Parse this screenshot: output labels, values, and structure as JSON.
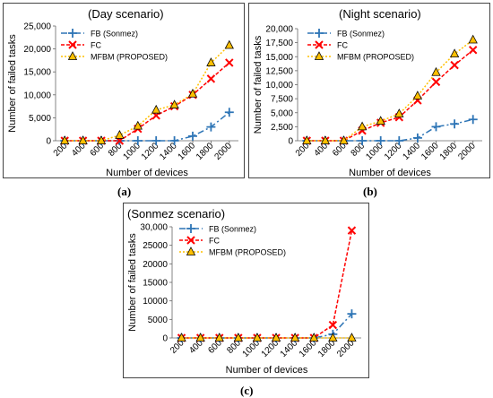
{
  "chart_data": [
    {
      "type": "line",
      "panel": "a",
      "title": "(Day scenario)",
      "xlabel": "Number of devices",
      "ylabel": "Number of failed tasks",
      "categories": [
        "200",
        "400",
        "600",
        "800",
        "1000",
        "1200",
        "1400",
        "1600",
        "1800",
        "2000"
      ],
      "yticks": [
        "0",
        "5,000",
        "10,000",
        "15,000",
        "20,000",
        "25,000"
      ],
      "ylim": [
        0,
        25000
      ],
      "legend_position": "top-left",
      "series": [
        {
          "name": "FB (Sonmez)",
          "color": "#2e75b6",
          "marker": "plus",
          "dash": "dashdot",
          "values": [
            0,
            0,
            0,
            0,
            0,
            0,
            0,
            1000,
            3000,
            6200
          ]
        },
        {
          "name": "FC",
          "color": "#ff0000",
          "marker": "x",
          "dash": "dash",
          "values": [
            0,
            0,
            0,
            0,
            2600,
            5500,
            7500,
            10000,
            13500,
            17000
          ]
        },
        {
          "name": "MFBM (PROPOSED)",
          "color": "#ffc000",
          "marker": "triangle",
          "dash": "dot",
          "values": [
            0,
            0,
            0,
            1200,
            3200,
            6700,
            7800,
            10200,
            17000,
            20800
          ]
        }
      ]
    },
    {
      "type": "line",
      "panel": "b",
      "title": "(Night scenario)",
      "xlabel": "Number of devices",
      "ylabel": "Number of failed tasks",
      "categories": [
        "200",
        "400",
        "600",
        "800",
        "1000",
        "1200",
        "1400",
        "1600",
        "1800",
        "2000"
      ],
      "yticks": [
        "0",
        "2,500",
        "5,000",
        "7,500",
        "10,000",
        "12,500",
        "15,000",
        "17,500",
        "20,000"
      ],
      "ylim": [
        0,
        20000
      ],
      "legend_position": "top-left",
      "series": [
        {
          "name": "FB (Sonmez)",
          "color": "#2e75b6",
          "marker": "plus",
          "dash": "dashdot",
          "values": [
            0,
            0,
            0,
            0,
            0,
            0,
            500,
            2500,
            3000,
            3800
          ]
        },
        {
          "name": "FC",
          "color": "#ff0000",
          "marker": "x",
          "dash": "dash",
          "values": [
            0,
            0,
            0,
            1800,
            3200,
            4200,
            7200,
            10500,
            13500,
            16200
          ]
        },
        {
          "name": "MFBM (PROPOSED)",
          "color": "#ffc000",
          "marker": "triangle",
          "dash": "dot",
          "values": [
            0,
            0,
            0,
            2500,
            3500,
            4800,
            8000,
            12200,
            15500,
            18000
          ]
        }
      ]
    },
    {
      "type": "line",
      "panel": "c",
      "title": "(Sonmez scenario)",
      "xlabel": "Number of devices",
      "ylabel": "Number of failed tasks",
      "categories": [
        "200",
        "400",
        "600",
        "800",
        "1000",
        "1200",
        "1400",
        "1600",
        "1800",
        "2000"
      ],
      "yticks": [
        "0",
        "5000",
        "10000",
        "15000",
        "20000",
        "25000",
        "30,000"
      ],
      "ylim": [
        0,
        30000
      ],
      "legend_position": "top-left",
      "series": [
        {
          "name": "FB  (Sonmez)",
          "color": "#2e75b6",
          "marker": "plus",
          "dash": "dashdot",
          "values": [
            0,
            0,
            0,
            0,
            0,
            0,
            0,
            0,
            1000,
            6500
          ]
        },
        {
          "name": "FC",
          "color": "#ff0000",
          "marker": "x",
          "dash": "dash",
          "values": [
            0,
            0,
            0,
            0,
            0,
            0,
            0,
            0,
            3500,
            29000
          ]
        },
        {
          "name": "MFBM (PROPOSED)",
          "color": "#ffc000",
          "marker": "triangle",
          "dash": "dot",
          "values": [
            0,
            0,
            0,
            0,
            0,
            0,
            0,
            0,
            0,
            0
          ]
        }
      ]
    }
  ],
  "labels": {
    "a": "(a)",
    "b": "(b)",
    "c": "(c)"
  }
}
